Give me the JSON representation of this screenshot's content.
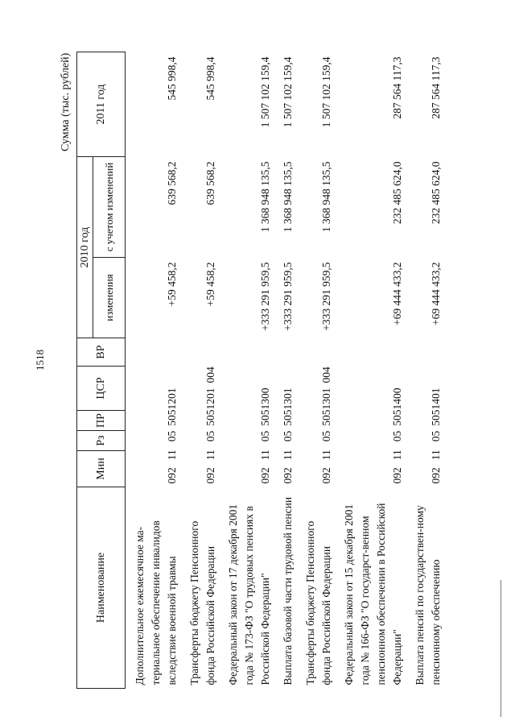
{
  "page_number": "1518",
  "units": "Сумма (тыс. рублей)",
  "headers": {
    "name": "Наименование",
    "min": "Мин",
    "rz": "Рз",
    "pr": "ПР",
    "csr": "ЦСР",
    "vr": "ВР",
    "year2010": "2010 год",
    "changes": "изменения",
    "with_changes": "с учетом изменений",
    "year2011": "2011 год"
  },
  "rows": [
    {
      "name": "Дополнительное ежемесячное ма-териальное обеспечение инвалидов вследствие военной травмы",
      "min": "092",
      "rz": "11",
      "pr": "05",
      "csr": "5051201",
      "vr": "",
      "changes": "+59 458,2",
      "with_changes": "639 568,2",
      "y2011": "545 998,4"
    },
    {
      "name": "Трансферты бюджету Пенсионного фонда Российской Федерации",
      "min": "092",
      "rz": "11",
      "pr": "05",
      "csr": "5051201",
      "vr": "004",
      "changes": "+59 458,2",
      "with_changes": "639 568,2",
      "y2011": "545 998,4"
    },
    {
      "name": "Федеральный закон от 17 декабря 2001 года № 173-ФЗ \"О трудовых пенсиях в Российской Федерации\"",
      "min": "092",
      "rz": "11",
      "pr": "05",
      "csr": "5051300",
      "vr": "",
      "changes": "+333 291 959,5",
      "with_changes": "1 368 948 135,5",
      "y2011": "1 507 102 159,4"
    },
    {
      "name": "Выплата базовой части трудовой пенсии",
      "min": "092",
      "rz": "11",
      "pr": "05",
      "csr": "5051301",
      "vr": "",
      "changes": "+333 291 959,5",
      "with_changes": "1 368 948 135,5",
      "y2011": "1 507 102 159,4"
    },
    {
      "name": "Трансферты бюджету Пенсионного фонда Российской Федерации",
      "min": "092",
      "rz": "11",
      "pr": "05",
      "csr": "5051301",
      "vr": "004",
      "changes": "+333 291 959,5",
      "with_changes": "1 368 948 135,5",
      "y2011": "1 507 102 159,4"
    },
    {
      "name": "Федеральный закон от 15 декабря 2001 года № 166-ФЗ \"О государст-венном пенсионном обеспечении в Российской Федерации\"",
      "min": "092",
      "rz": "11",
      "pr": "05",
      "csr": "5051400",
      "vr": "",
      "changes": "+69 444 433,2",
      "with_changes": "232 485 624,0",
      "y2011": "287 564 117,3"
    },
    {
      "name": "Выплата пенсий по государствен-ному пенсионному обеспечению",
      "min": "092",
      "rz": "11",
      "pr": "05",
      "csr": "5051401",
      "vr": "",
      "changes": "+69 444 433,2",
      "with_changes": "232 485 624,0",
      "y2011": "287 564 117,3"
    }
  ]
}
